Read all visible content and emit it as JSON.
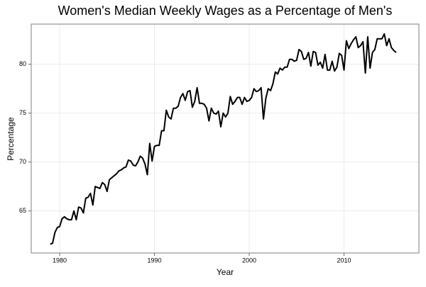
{
  "chart_data": {
    "type": "line",
    "title": "Women's Median Weekly Wages as a Percentage of Men's",
    "x_label": "Year",
    "y_label": "Percentage",
    "x": [
      1979,
      1979.25,
      1979.5,
      1979.75,
      1980,
      1980.25,
      1980.5,
      1980.75,
      1981,
      1981.25,
      1981.5,
      1981.75,
      1982,
      1982.25,
      1982.5,
      1982.75,
      1983,
      1983.25,
      1983.5,
      1983.75,
      1984,
      1984.25,
      1984.5,
      1984.75,
      1985,
      1985.25,
      1985.5,
      1985.75,
      1986,
      1986.25,
      1986.5,
      1986.75,
      1987,
      1987.25,
      1987.5,
      1987.75,
      1988,
      1988.25,
      1988.5,
      1988.75,
      1989,
      1989.25,
      1989.5,
      1989.75,
      1990,
      1990.25,
      1990.5,
      1990.75,
      1991,
      1991.25,
      1991.5,
      1991.75,
      1992,
      1992.25,
      1992.5,
      1992.75,
      1993,
      1993.25,
      1993.5,
      1993.75,
      1994,
      1994.25,
      1994.5,
      1994.75,
      1995,
      1995.25,
      1995.5,
      1995.75,
      1996,
      1996.25,
      1996.5,
      1996.75,
      1997,
      1997.25,
      1997.5,
      1997.75,
      1998,
      1998.25,
      1998.5,
      1998.75,
      1999,
      1999.25,
      1999.5,
      1999.75,
      2000,
      2000.25,
      2000.5,
      2000.75,
      2001,
      2001.25,
      2001.5,
      2001.75,
      2002,
      2002.25,
      2002.5,
      2002.75,
      2003,
      2003.25,
      2003.5,
      2003.75,
      2004,
      2004.25,
      2004.5,
      2004.75,
      2005,
      2005.25,
      2005.5,
      2005.75,
      2006,
      2006.25,
      2006.5,
      2006.75,
      2007,
      2007.25,
      2007.5,
      2007.75,
      2008,
      2008.25,
      2008.5,
      2008.75,
      2009,
      2009.25,
      2009.5,
      2009.75,
      2010,
      2010.25,
      2010.5,
      2010.75,
      2011,
      2011.25,
      2011.5,
      2011.75,
      2012,
      2012.25,
      2012.5,
      2012.75,
      2013,
      2013.25,
      2013.5,
      2013.75,
      2014,
      2014.25,
      2014.5,
      2014.75,
      2015,
      2015.25,
      2015.5
    ],
    "series": [
      {
        "color": "#000000",
        "values": [
          61.6,
          61.7,
          62.8,
          63.3,
          63.4,
          64.2,
          64.4,
          64.2,
          64.1,
          64.1,
          65.0,
          64.1,
          65.4,
          65.3,
          64.8,
          66.3,
          66.4,
          66.8,
          65.6,
          67.5,
          67.4,
          67.3,
          67.9,
          67.7,
          67.0,
          68.2,
          68.4,
          68.6,
          68.8,
          69.1,
          69.2,
          69.4,
          69.5,
          70.2,
          70.1,
          69.7,
          69.6,
          70.0,
          70.6,
          70.4,
          69.8,
          68.7,
          71.9,
          70.1,
          71.6,
          71.7,
          71.7,
          73.2,
          73.2,
          75.3,
          74.6,
          74.4,
          75.5,
          75.5,
          75.7,
          76.6,
          77.0,
          76.3,
          77.2,
          77.3,
          75.6,
          76.2,
          77.6,
          76.0,
          76.0,
          75.9,
          75.5,
          74.2,
          75.5,
          75.0,
          74.9,
          75.2,
          73.6,
          75.0,
          74.6,
          75.0,
          76.7,
          75.9,
          76.2,
          76.6,
          76.6,
          75.9,
          76.6,
          76.2,
          76.3,
          76.6,
          77.5,
          77.2,
          77.3,
          77.6,
          74.4,
          76.5,
          77.5,
          77.3,
          78.0,
          79.2,
          79.0,
          79.6,
          79.4,
          79.7,
          79.7,
          80.5,
          80.5,
          80.3,
          80.4,
          81.5,
          81.3,
          80.5,
          80.6,
          81.2,
          79.8,
          81.3,
          81.2,
          79.9,
          80.2,
          79.6,
          81.0,
          79.4,
          79.4,
          80.3,
          79.3,
          79.7,
          81.1,
          80.9,
          79.4,
          82.4,
          81.6,
          82.1,
          82.5,
          82.8,
          81.7,
          81.9,
          82.3,
          79.1,
          82.8,
          79.6,
          81.2,
          81.5,
          82.6,
          82.6,
          82.6,
          83.1,
          81.9,
          82.6,
          81.7,
          81.4,
          81.2
        ]
      }
    ],
    "xlim": [
      1977,
      2017.9
    ],
    "xticks": [
      1980,
      1990,
      2000,
      2010
    ],
    "ylim": [
      60.7,
      84.1
    ],
    "yticks": [
      65,
      70,
      75,
      80
    ],
    "grid": true
  }
}
